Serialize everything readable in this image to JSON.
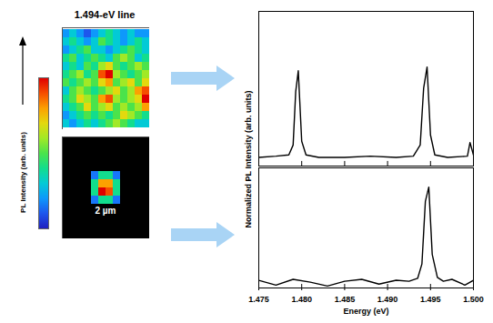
{
  "chart_data": [
    {
      "type": "heatmap",
      "title": "1.494-eV line",
      "tick_labels": false,
      "colorbar": {
        "label": "PL Intensity (arb. units)",
        "range": [
          0,
          1
        ]
      },
      "cells": [
        [
          0.2,
          0.3,
          0.2,
          0.1,
          0.2,
          0.3,
          0.4,
          0.3,
          0.2,
          0.3,
          0.2,
          0.2
        ],
        [
          0.3,
          0.4,
          0.3,
          0.2,
          0.3,
          0.5,
          0.4,
          0.3,
          0.2,
          0.3,
          0.4,
          0.3
        ],
        [
          0.2,
          0.3,
          0.4,
          0.5,
          0.3,
          0.3,
          0.2,
          0.3,
          0.4,
          0.5,
          0.4,
          0.3
        ],
        [
          0.4,
          0.5,
          0.3,
          0.4,
          0.5,
          0.4,
          0.3,
          0.5,
          0.6,
          0.5,
          0.3,
          0.4
        ],
        [
          0.3,
          0.4,
          0.3,
          0.5,
          0.4,
          0.6,
          0.7,
          0.5,
          0.4,
          0.5,
          0.6,
          0.5
        ],
        [
          0.4,
          0.5,
          0.6,
          0.4,
          0.5,
          0.9,
          1.0,
          0.6,
          0.5,
          0.4,
          0.5,
          0.6
        ],
        [
          0.5,
          0.4,
          0.5,
          0.6,
          0.5,
          0.7,
          0.8,
          0.5,
          0.6,
          0.7,
          0.5,
          0.7
        ],
        [
          0.3,
          0.5,
          0.6,
          0.5,
          0.4,
          0.5,
          0.6,
          0.7,
          0.5,
          0.6,
          0.8,
          0.9
        ],
        [
          0.4,
          0.5,
          0.7,
          0.6,
          0.5,
          0.8,
          0.9,
          0.6,
          0.5,
          0.6,
          0.7,
          1.0
        ],
        [
          0.3,
          0.4,
          0.5,
          0.7,
          0.5,
          0.6,
          0.7,
          0.5,
          0.6,
          0.5,
          0.6,
          0.8
        ],
        [
          0.2,
          0.3,
          0.4,
          0.5,
          0.4,
          0.5,
          0.4,
          0.5,
          0.7,
          0.6,
          0.5,
          0.4
        ],
        [
          0.3,
          0.2,
          0.3,
          0.4,
          0.3,
          0.4,
          0.5,
          0.6,
          0.5,
          0.4,
          0.3,
          0.3
        ]
      ]
    },
    {
      "type": "heatmap",
      "tick_labels": false,
      "annotations": [
        "2 µm"
      ],
      "cells": [
        [
          null,
          null,
          null,
          null,
          null,
          null,
          null,
          null,
          null,
          null,
          null,
          null
        ],
        [
          null,
          null,
          null,
          null,
          null,
          null,
          null,
          null,
          null,
          null,
          null,
          null
        ],
        [
          null,
          null,
          null,
          null,
          null,
          null,
          null,
          null,
          null,
          null,
          null,
          null
        ],
        [
          null,
          null,
          null,
          null,
          null,
          null,
          null,
          null,
          null,
          null,
          null,
          null
        ],
        [
          null,
          null,
          null,
          null,
          0.15,
          0.4,
          0.4,
          0.15,
          null,
          null,
          null,
          null
        ],
        [
          null,
          null,
          null,
          null,
          0.4,
          0.8,
          0.8,
          0.4,
          null,
          null,
          null,
          null
        ],
        [
          null,
          null,
          null,
          null,
          0.4,
          1.0,
          0.9,
          0.4,
          null,
          null,
          null,
          null
        ],
        [
          null,
          null,
          null,
          null,
          0.15,
          0.4,
          0.4,
          0.15,
          null,
          null,
          null,
          null
        ],
        [
          null,
          null,
          null,
          null,
          null,
          null,
          null,
          null,
          null,
          null,
          null,
          null
        ],
        [
          null,
          null,
          null,
          null,
          null,
          null,
          null,
          null,
          null,
          null,
          null,
          null
        ],
        [
          null,
          null,
          null,
          null,
          null,
          null,
          null,
          null,
          null,
          null,
          null,
          null
        ],
        [
          null,
          null,
          null,
          null,
          null,
          null,
          null,
          null,
          null,
          null,
          null,
          null
        ]
      ]
    },
    {
      "type": "line",
      "ylabel": "Normalized PL Intensity (arb. units)",
      "tick_labels": false,
      "xlim": [
        1.475,
        1.5
      ],
      "ylim": [
        -0.05,
        1.2
      ],
      "xticks": [
        {
          "value": 1.475,
          "label": "1.475"
        },
        {
          "value": 1.48,
          "label": "1.480"
        },
        {
          "value": 1.485,
          "label": "1.485"
        },
        {
          "value": 1.49,
          "label": "1.490"
        },
        {
          "value": 1.495,
          "label": "1.495"
        },
        {
          "value": 1.5,
          "label": "1.500"
        }
      ],
      "color": "#000000",
      "x": [
        1.475,
        1.477,
        1.4785,
        1.479,
        1.4793,
        1.4796,
        1.48,
        1.4805,
        1.482,
        1.485,
        1.488,
        1.491,
        1.493,
        1.4938,
        1.4942,
        1.4946,
        1.495,
        1.4955,
        1.497,
        1.4993,
        1.4996,
        1.5
      ],
      "values": [
        0.02,
        0.03,
        0.04,
        0.12,
        0.55,
        0.72,
        0.15,
        0.04,
        0.02,
        0.02,
        0.03,
        0.02,
        0.03,
        0.12,
        0.58,
        0.75,
        0.2,
        0.04,
        0.02,
        0.03,
        0.14,
        0.04
      ]
    },
    {
      "type": "line",
      "xlabel": "Energy (eV)",
      "tick_labels": "x",
      "xlim": [
        1.475,
        1.5
      ],
      "ylim": [
        -0.05,
        1.2
      ],
      "xticks": [
        {
          "value": 1.475,
          "label": "1.475"
        },
        {
          "value": 1.48,
          "label": "1.480"
        },
        {
          "value": 1.485,
          "label": "1.485"
        },
        {
          "value": 1.49,
          "label": "1.490"
        },
        {
          "value": 1.495,
          "label": "1.495"
        },
        {
          "value": 1.5,
          "label": "1.500"
        }
      ],
      "color": "#000000",
      "x": [
        1.475,
        1.477,
        1.479,
        1.481,
        1.483,
        1.485,
        1.487,
        1.489,
        1.491,
        1.4925,
        1.4935,
        1.494,
        1.4944,
        1.4948,
        1.4952,
        1.4958,
        1.4965,
        1.4975,
        1.499,
        1.5
      ],
      "values": [
        0.03,
        -0.02,
        0.04,
        0.01,
        -0.03,
        0.02,
        0.04,
        -0.01,
        0.03,
        0.02,
        0.05,
        0.2,
        0.85,
        1.0,
        0.3,
        0.06,
        0.02,
        0.04,
        -0.02,
        0.03
      ]
    }
  ]
}
